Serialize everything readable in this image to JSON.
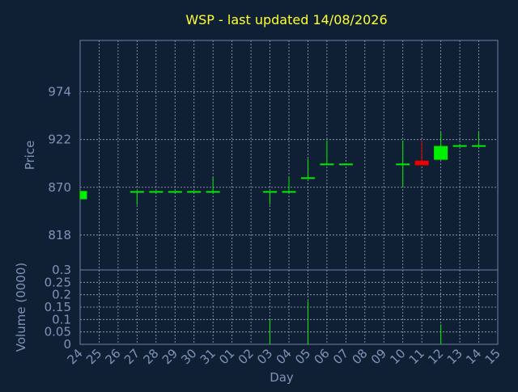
{
  "chart_data": {
    "type": "candlestick",
    "title": "WSP - last updated 14/08/2026",
    "price_axis": {
      "label": "Price",
      "ticks": [
        818,
        870,
        922,
        974
      ],
      "range": [
        780,
        1030
      ]
    },
    "volume_axis": {
      "label": "Volume (0000)",
      "ticks": [
        "0",
        "0.05",
        "0.1",
        "0.15",
        "0.2",
        "0.25",
        "0.3"
      ],
      "range": [
        0,
        0.3
      ]
    },
    "x_axis": {
      "label": "Day",
      "ticks": [
        "24",
        "25",
        "26",
        "27",
        "28",
        "29",
        "30",
        "31",
        "01",
        "02",
        "03",
        "04",
        "05",
        "06",
        "07",
        "08",
        "09",
        "10",
        "11",
        "12",
        "13",
        "14",
        "15"
      ]
    },
    "grid": true,
    "colors": {
      "up": "#00ee00",
      "down": "#ee0000",
      "background": "#0f2035",
      "title": "#ffff33",
      "axis_text": "#7f93b8"
    },
    "candles": [
      {
        "day": "24",
        "open": 857,
        "high": 866,
        "low": 857,
        "close": 866,
        "volume": 0
      },
      {
        "day": "27",
        "open": 865,
        "high": 865,
        "low": 851,
        "close": 865,
        "volume": 0
      },
      {
        "day": "28",
        "open": 865,
        "high": 865,
        "low": 865,
        "close": 865,
        "volume": 0
      },
      {
        "day": "29",
        "open": 865,
        "high": 865,
        "low": 865,
        "close": 865,
        "volume": 0
      },
      {
        "day": "30",
        "open": 865,
        "high": 865,
        "low": 865,
        "close": 865,
        "volume": 0
      },
      {
        "day": "31",
        "open": 865,
        "high": 881,
        "low": 865,
        "close": 865,
        "volume": 0
      },
      {
        "day": "03",
        "open": 865,
        "high": 865,
        "low": 851,
        "close": 865,
        "volume": 0.1
      },
      {
        "day": "04",
        "open": 865,
        "high": 881,
        "low": 865,
        "close": 865,
        "volume": 0
      },
      {
        "day": "05",
        "open": 880,
        "high": 901,
        "low": 880,
        "close": 880,
        "volume": 0.175
      },
      {
        "day": "06",
        "open": 895,
        "high": 921,
        "low": 895,
        "close": 895,
        "volume": 0
      },
      {
        "day": "07",
        "open": 895,
        "high": 895,
        "low": 895,
        "close": 895,
        "volume": 0
      },
      {
        "day": "10",
        "open": 895,
        "high": 921,
        "low": 870,
        "close": 895,
        "volume": 0
      },
      {
        "day": "11",
        "open": 899,
        "high": 921,
        "low": 894,
        "close": 894,
        "volume": 0
      },
      {
        "day": "12",
        "open": 900,
        "high": 930,
        "low": 900,
        "close": 915,
        "volume": 0.08
      },
      {
        "day": "13",
        "open": 915,
        "high": 915,
        "low": 915,
        "close": 915,
        "volume": 0
      },
      {
        "day": "14",
        "open": 915,
        "high": 930,
        "low": 915,
        "close": 915,
        "volume": 0
      }
    ]
  }
}
